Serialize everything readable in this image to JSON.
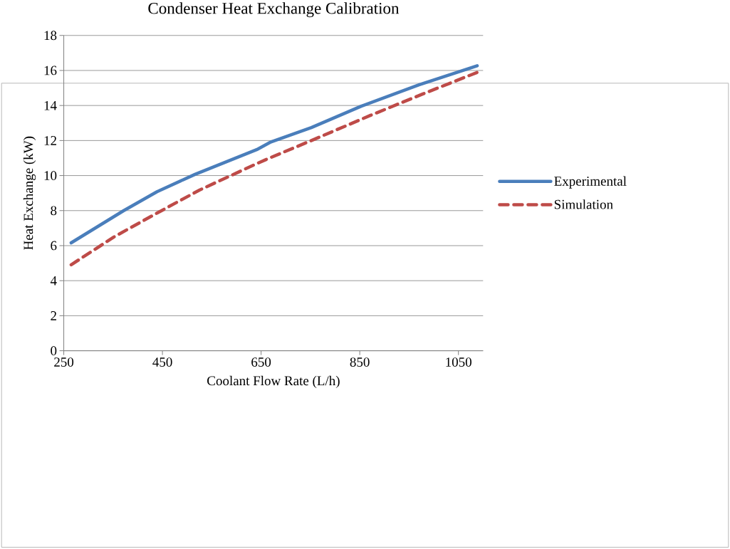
{
  "chart_data": {
    "type": "line",
    "title": "Condenser Heat Exchange Calibration",
    "xlabel": "Coolant Flow Rate (L/h)",
    "ylabel": "Heat Exchange (kW)",
    "xlim": [
      250,
      1100
    ],
    "xticks": [
      250,
      450,
      650,
      850,
      1050
    ],
    "ylim": [
      0,
      18
    ],
    "yticks": [
      0,
      2,
      4,
      6,
      8,
      10,
      12,
      14,
      16,
      18
    ],
    "grid": "y",
    "legend": "right",
    "marker": "none",
    "series": [
      {
        "name": "Experimental",
        "color": "#4a7ebb",
        "line_style": "solid",
        "x": [
          265,
          371,
          439,
          516,
          641,
          670,
          752,
          853,
          970,
          1088
        ],
        "values": [
          6.16,
          7.99,
          9.08,
          10.07,
          11.48,
          11.92,
          12.74,
          13.96,
          15.18,
          16.27
        ]
      },
      {
        "name": "Simulation",
        "color": "#be4b48",
        "line_style": "dashed",
        "x": [
          265,
          352,
          439,
          525,
          641,
          662,
          752,
          872,
          978,
          1088
        ],
        "values": [
          4.91,
          6.5,
          7.86,
          9.17,
          10.68,
          10.94,
          12.0,
          13.44,
          14.66,
          15.89
        ]
      }
    ]
  }
}
